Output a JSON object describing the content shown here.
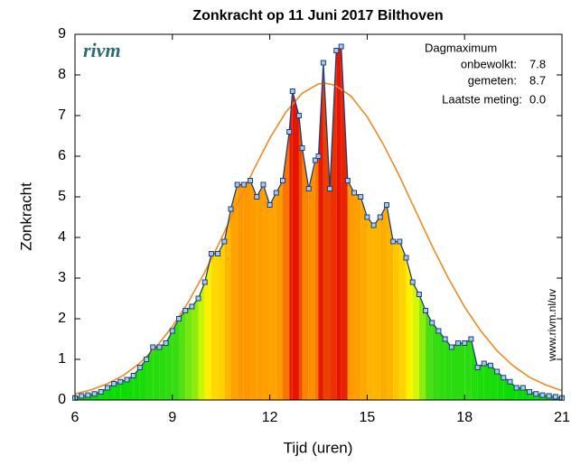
{
  "chart_data": {
    "type": "area-line",
    "title": "Zonkracht op 11 Juni 2017 Bilthoven",
    "xlabel": "Tijd (uren)",
    "ylabel": "Zonkracht",
    "logo": "rivm",
    "source": "www.rivm.nl/uv",
    "annotations": {
      "header": "Dagmaximum",
      "clear_label": "onbewolkt:",
      "clear_value": "7.8",
      "measured_label": "gemeten:",
      "measured_value": "8.7",
      "last_label": "Laatste meting:",
      "last_value": "0.0"
    },
    "xlim": [
      6,
      21
    ],
    "xticks": [
      6,
      9,
      12,
      15,
      18,
      21
    ],
    "ylim": [
      0,
      9
    ],
    "yticks": [
      0,
      1,
      2,
      3,
      4,
      5,
      6,
      7,
      8,
      9
    ],
    "series": [
      {
        "name": "gemeten",
        "color": "#1f3f7a",
        "x": [
          6.0,
          6.2,
          6.4,
          6.6,
          6.8,
          7.0,
          7.2,
          7.4,
          7.6,
          7.8,
          8.0,
          8.2,
          8.4,
          8.6,
          8.8,
          9.0,
          9.2,
          9.4,
          9.6,
          9.8,
          10.0,
          10.2,
          10.4,
          10.6,
          10.8,
          11.0,
          11.2,
          11.4,
          11.6,
          11.8,
          12.0,
          12.2,
          12.4,
          12.6,
          12.7,
          12.9,
          13.0,
          13.2,
          13.4,
          13.5,
          13.65,
          13.85,
          14.05,
          14.2,
          14.4,
          14.6,
          14.8,
          15.0,
          15.2,
          15.4,
          15.6,
          15.8,
          16.0,
          16.2,
          16.4,
          16.6,
          16.8,
          17.0,
          17.2,
          17.4,
          17.6,
          17.8,
          18.0,
          18.2,
          18.4,
          18.6,
          18.8,
          19.0,
          19.2,
          19.4,
          19.6,
          19.8,
          20.0,
          20.2,
          20.4,
          20.6,
          20.8,
          21.0
        ],
        "values": [
          0.05,
          0.1,
          0.12,
          0.15,
          0.2,
          0.3,
          0.4,
          0.45,
          0.5,
          0.6,
          0.8,
          1.0,
          1.3,
          1.3,
          1.4,
          1.7,
          2.0,
          2.2,
          2.3,
          2.5,
          2.9,
          3.6,
          3.6,
          3.9,
          4.7,
          5.3,
          5.3,
          5.4,
          5.0,
          5.3,
          4.8,
          5.1,
          5.4,
          6.6,
          7.6,
          7.0,
          6.2,
          5.2,
          5.9,
          6.0,
          8.3,
          5.2,
          8.6,
          8.7,
          5.4,
          5.1,
          5.0,
          4.5,
          4.3,
          4.5,
          4.8,
          3.9,
          3.9,
          3.5,
          2.9,
          2.6,
          2.2,
          1.9,
          1.7,
          1.5,
          1.3,
          1.4,
          1.4,
          1.5,
          0.8,
          0.9,
          0.85,
          0.7,
          0.55,
          0.45,
          0.3,
          0.3,
          0.2,
          0.15,
          0.12,
          0.1,
          0.08,
          0.05
        ]
      },
      {
        "name": "onbewolkt",
        "color": "#f08a24",
        "x": [
          6,
          6.5,
          7,
          7.5,
          8,
          8.5,
          9,
          9.5,
          10,
          10.5,
          11,
          11.5,
          12,
          12.5,
          13,
          13.5,
          13.7,
          14,
          14.5,
          15,
          15.5,
          16,
          16.5,
          17,
          17.5,
          18,
          18.5,
          19,
          19.5,
          20,
          20.5,
          21
        ],
        "values": [
          0.15,
          0.25,
          0.4,
          0.61,
          0.91,
          1.3,
          1.81,
          2.42,
          3.15,
          3.96,
          4.81,
          5.66,
          6.44,
          7.09,
          7.55,
          7.78,
          7.8,
          7.75,
          7.48,
          6.97,
          6.29,
          5.5,
          4.64,
          3.79,
          3.0,
          2.29,
          1.7,
          1.21,
          0.84,
          0.56,
          0.37,
          0.23
        ]
      }
    ]
  }
}
